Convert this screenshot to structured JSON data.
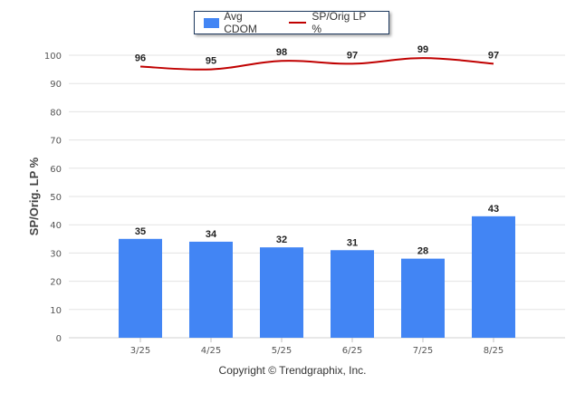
{
  "legend": {
    "bar_label": "Avg CDOM",
    "line_label": "SP/Orig LP %"
  },
  "copyright": "Copyright © Trendgraphix, Inc.",
  "colors": {
    "bar": "#4285f4",
    "line": "#c00000"
  },
  "chart_data": {
    "type": "bar",
    "categories": [
      "3/25",
      "4/25",
      "5/25",
      "6/25",
      "7/25",
      "8/25"
    ],
    "series": [
      {
        "name": "Avg CDOM",
        "type": "bar",
        "values": [
          35,
          34,
          32,
          31,
          28,
          43
        ]
      },
      {
        "name": "SP/Orig LP %",
        "type": "line",
        "values": [
          96,
          95,
          98,
          97,
          99,
          97
        ]
      }
    ],
    "ylabel": "SP/Orig. LP %",
    "xlabel": "",
    "ylim": [
      0,
      100
    ],
    "yticks": [
      0,
      10,
      20,
      30,
      40,
      50,
      60,
      70,
      80,
      90,
      100
    ],
    "grid": true,
    "legend": "top-center"
  }
}
